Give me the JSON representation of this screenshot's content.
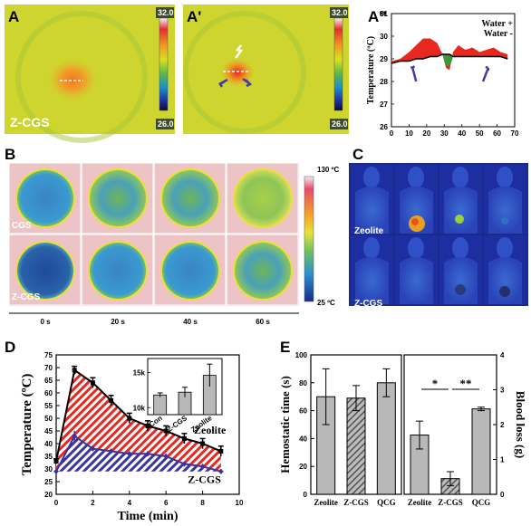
{
  "panel_labels": {
    "a": "A",
    "a1": "A'",
    "a2": "A''",
    "b": "B",
    "c": "C",
    "d": "D",
    "e": "E"
  },
  "panel_a": {
    "sample_label": "Z-CGS",
    "scale_max": "32.0",
    "scale_min": "26.0"
  },
  "panel_a1": {
    "scale_max": "32.0",
    "scale_min": "26.0"
  },
  "panel_b": {
    "row_labels": [
      "CGS",
      "Z-CGS"
    ],
    "time_labels": [
      "0 s",
      "20 s",
      "40 s",
      "60 s"
    ],
    "scale_max": "130 ºC",
    "scale_min": "25 ºC"
  },
  "panel_c": {
    "row_labels": [
      "Zeolite",
      "Z-CGS"
    ]
  },
  "colors": {
    "red": "#e8271e",
    "blue": "#3b34a0",
    "green": "#3a9a3a",
    "bar": "#b8b8b8"
  },
  "chart_data": [
    {
      "id": "A2",
      "type": "area",
      "ylabel": "Temperature (ºC)",
      "ylim": [
        26,
        31
      ],
      "xlim": [
        0,
        70
      ],
      "x_ticks": [
        "0",
        "10",
        "20",
        "30",
        "40",
        "50",
        "60",
        "70"
      ],
      "y_ticks": [
        "26",
        "27",
        "28",
        "29",
        "30",
        "31"
      ],
      "legend": [
        "Water +",
        "Water -"
      ],
      "series": [
        {
          "name": "Water +",
          "x": [
            0,
            5,
            10,
            14,
            18,
            22,
            26,
            29,
            31,
            33,
            35,
            38,
            42,
            46,
            50,
            54,
            58,
            62,
            66
          ],
          "values": [
            28.9,
            29.0,
            29.3,
            29.6,
            29.9,
            29.9,
            29.7,
            29.2,
            28.6,
            28.5,
            29.3,
            29.6,
            29.4,
            29.5,
            29.3,
            29.4,
            29.5,
            29.3,
            29.2
          ]
        },
        {
          "name": "Water -",
          "x": [
            0,
            5,
            10,
            14,
            18,
            22,
            26,
            29,
            31,
            33,
            35,
            38,
            42,
            46,
            50,
            54,
            58,
            62,
            66
          ],
          "values": [
            28.8,
            28.9,
            28.9,
            29.0,
            29.0,
            29.1,
            29.1,
            29.2,
            29.2,
            29.2,
            29.1,
            29.1,
            29.1,
            29.1,
            29.1,
            29.1,
            29.1,
            29.1,
            29.0
          ]
        }
      ]
    },
    {
      "id": "D",
      "type": "area",
      "xlabel": "Time (min)",
      "ylabel": "Temperature (ºC)",
      "xlim": [
        0,
        10
      ],
      "ylim": [
        20,
        75
      ],
      "x_ticks": [
        "0",
        "2",
        "4",
        "6",
        "8",
        "10"
      ],
      "y_ticks": [
        "20",
        "25",
        "30",
        "35",
        "40",
        "45",
        "50",
        "55",
        "60",
        "65",
        "70",
        "75"
      ],
      "series": [
        {
          "name": "Zeolite",
          "x": [
            0,
            1,
            2,
            3,
            4,
            5,
            6,
            7,
            8,
            9
          ],
          "values": [
            33,
            69,
            64,
            57,
            50,
            47,
            45,
            42,
            40,
            37
          ],
          "errors": [
            1,
            1.5,
            2,
            2,
            2,
            2,
            2,
            2,
            2,
            2
          ]
        },
        {
          "name": "Z-CGS",
          "x": [
            0,
            1,
            2,
            3,
            4,
            5,
            6,
            7,
            8,
            9
          ],
          "values": [
            29,
            43,
            38,
            37,
            36,
            36,
            35,
            32,
            31,
            29
          ],
          "errors": [
            1,
            2,
            1,
            1,
            1,
            1,
            1,
            1,
            1,
            1
          ]
        }
      ],
      "inset": {
        "type": "bar",
        "categories": [
          "Con",
          "Z-CGS",
          "Zeolite"
        ],
        "values": [
          11800,
          12200,
          14600
        ],
        "errors": [
          300,
          700,
          1600
        ],
        "ylim": [
          9000,
          17000
        ],
        "y_ticks": [
          "10k",
          "15k"
        ]
      }
    },
    {
      "id": "E",
      "type": "bar",
      "subplots": [
        {
          "categories": [
            "Zeolite",
            "Z-CGS",
            "QCG"
          ],
          "ylabel": "Hemostatic time (s)",
          "values": [
            70,
            69,
            80
          ],
          "errors": [
            20,
            9,
            10
          ],
          "ylim": [
            0,
            100
          ],
          "y_ticks": [
            "0",
            "20",
            "40",
            "60",
            "80",
            "100"
          ]
        },
        {
          "categories": [
            "Zeolite",
            "Z-CGS",
            "QCG"
          ],
          "ylabel": "Blood loss (g)",
          "values": [
            1.7,
            0.45,
            2.45
          ],
          "errors": [
            0.4,
            0.2,
            0.05
          ],
          "ylim": [
            0,
            4
          ],
          "y_ticks": [
            "0",
            "1",
            "2",
            "3",
            "4"
          ],
          "significance": [
            {
              "from": 0,
              "to": 1,
              "label": "*"
            },
            {
              "from": 1,
              "to": 2,
              "label": "**"
            }
          ]
        }
      ]
    }
  ]
}
